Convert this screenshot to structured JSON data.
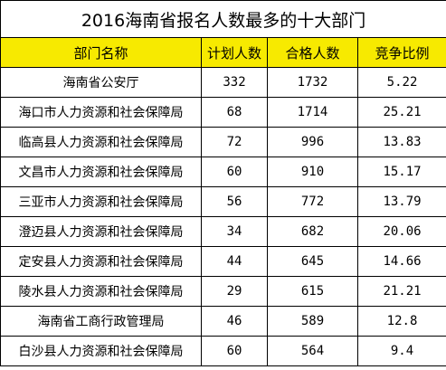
{
  "title": "2016海南省报名人数最多的十大部门",
  "columns": [
    "部门名称",
    "计划人数",
    "合格人数",
    "竞争比例"
  ],
  "rows": [
    {
      "dept": "海南省公安厅",
      "plan": "332",
      "qualified": "1732",
      "ratio": "5.22"
    },
    {
      "dept": "海口市人力资源和社会保障局",
      "plan": "68",
      "qualified": "1714",
      "ratio": "25.21"
    },
    {
      "dept": "临高县人力资源和社会保障局",
      "plan": "72",
      "qualified": "996",
      "ratio": "13.83"
    },
    {
      "dept": "文昌市人力资源和社会保障局",
      "plan": "60",
      "qualified": "910",
      "ratio": "15.17"
    },
    {
      "dept": "三亚市人力资源和社会保障局",
      "plan": "56",
      "qualified": "772",
      "ratio": "13.79"
    },
    {
      "dept": "澄迈县人力资源和社会保障局",
      "plan": "34",
      "qualified": "682",
      "ratio": "20.06"
    },
    {
      "dept": "定安县人力资源和社会保障局",
      "plan": "44",
      "qualified": "645",
      "ratio": "14.66"
    },
    {
      "dept": "陵水县人力资源和社会保障局",
      "plan": "29",
      "qualified": "615",
      "ratio": "21.21"
    },
    {
      "dept": "海南省工商行政管理局",
      "plan": "46",
      "qualified": "589",
      "ratio": "12.8"
    },
    {
      "dept": "白沙县人力资源和社会保障局",
      "plan": "60",
      "qualified": "564",
      "ratio": "9.4"
    }
  ],
  "colors": {
    "header_bg": "#f7ea00"
  }
}
